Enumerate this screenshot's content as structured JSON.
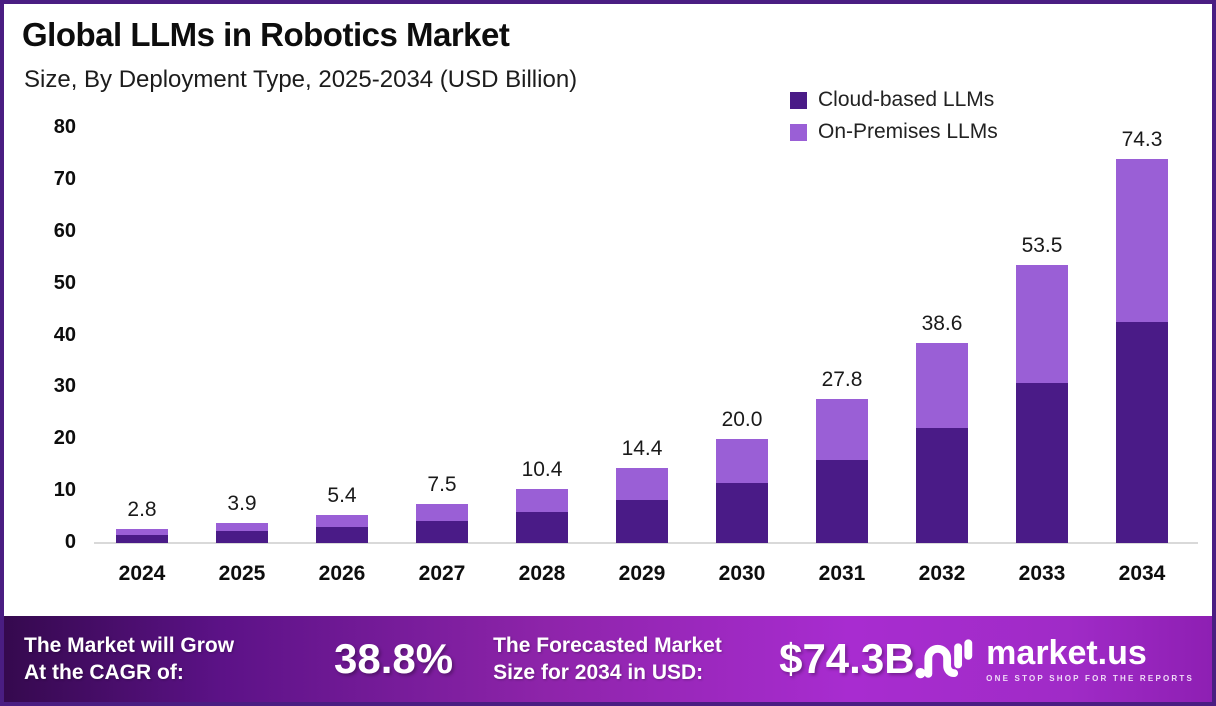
{
  "header": {
    "title": "Global LLMs in Robotics Market",
    "subtitle": "Size, By Deployment Type, 2025-2034 (USD Billion)"
  },
  "legend": {
    "items": [
      {
        "label": "Cloud-based LLMs",
        "color": "#4a1b87"
      },
      {
        "label": "On-Premises LLMs",
        "color": "#9a5fd6"
      }
    ]
  },
  "chart_data": {
    "type": "bar",
    "stacked": true,
    "title": "Global LLMs in Robotics Market",
    "subtitle": "Size, By Deployment Type, 2025-2034 (USD Billion)",
    "categories": [
      "2024",
      "2025",
      "2026",
      "2027",
      "2028",
      "2029",
      "2030",
      "2031",
      "2032",
      "2033",
      "2034"
    ],
    "series": [
      {
        "name": "Cloud-based LLMs",
        "color": "#4a1b87",
        "values": [
          1.6,
          2.3,
          3.1,
          4.3,
          6.0,
          8.3,
          11.5,
          16.0,
          22.2,
          30.8,
          42.7
        ]
      },
      {
        "name": "On-Premises LLMs",
        "color": "#9a5fd6",
        "values": [
          1.2,
          1.6,
          2.3,
          3.2,
          4.4,
          6.1,
          8.5,
          11.8,
          16.4,
          22.7,
          31.6
        ]
      }
    ],
    "totals": [
      2.8,
      3.9,
      5.4,
      7.5,
      10.4,
      14.4,
      20.0,
      27.8,
      38.6,
      53.5,
      74.3
    ],
    "total_labels": [
      "2.8",
      "3.9",
      "5.4",
      "7.5",
      "10.4",
      "14.4",
      "20.0",
      "27.8",
      "38.6",
      "53.5",
      "74.3"
    ],
    "xlabel": "",
    "ylabel": "",
    "ylim": [
      0,
      80
    ],
    "yticks": [
      0,
      10,
      20,
      30,
      40,
      50,
      60,
      70,
      80
    ],
    "grid": false,
    "legend_position": "top-right"
  },
  "footer": {
    "cagr_label_line1": "The Market will Grow",
    "cagr_label_line2": "At the CAGR of:",
    "cagr_value": "38.8%",
    "forecast_label_line1": "The Forecasted Market",
    "forecast_label_line2": "Size for 2034 in USD:",
    "forecast_value": "$74.3B",
    "brand": {
      "name": "market.us",
      "tagline": "ONE STOP SHOP FOR THE REPORTS"
    }
  },
  "colors": {
    "border": "#4a1d82",
    "baseline": "#d9d9d9",
    "footer_gradient_start": "#35094e",
    "footer_gradient_end": "#a82cd0"
  }
}
